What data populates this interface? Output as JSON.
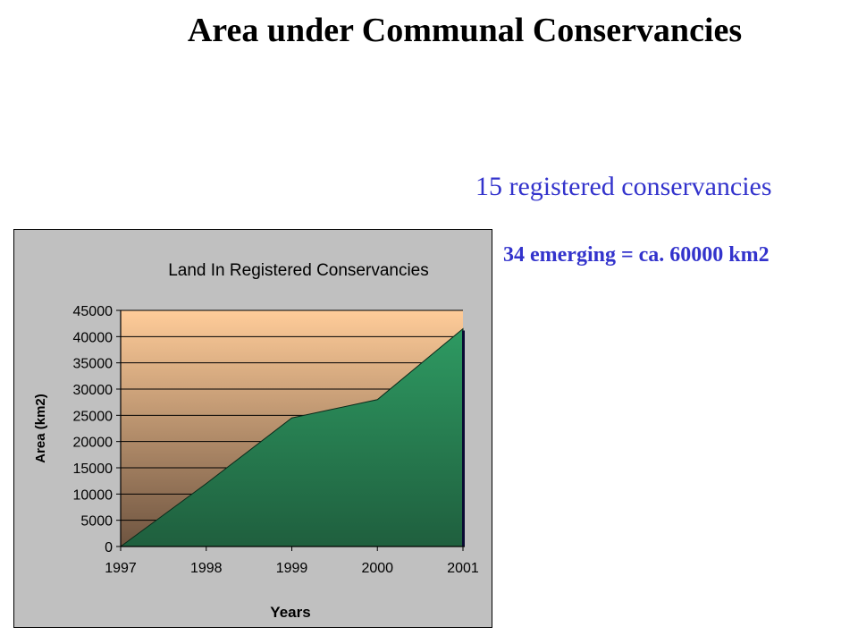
{
  "slide": {
    "title": "Area under Communal Conservancies",
    "note_registered": "15 registered conservancies",
    "note_emerging": "34 emerging = ca. 60000 km2"
  },
  "colors": {
    "area_fill": "#2e8b57",
    "area_dark": "#1f5f3e",
    "plot_top": "#ffcc99",
    "plot_bottom": "#6e5440",
    "frame": "#c0c0c0",
    "note_text": "#3333cc"
  },
  "chart_data": {
    "type": "area",
    "title": "Land In Registered Conservancies",
    "xlabel": "Years",
    "ylabel": "Area (km2)",
    "categories": [
      "1997",
      "1998",
      "1999",
      "2000",
      "2001"
    ],
    "values": [
      0,
      12000,
      24500,
      28000,
      41500
    ],
    "ylim": [
      0,
      45000
    ],
    "yticks": [
      "0",
      "5000",
      "10000",
      "15000",
      "20000",
      "25000",
      "30000",
      "35000",
      "40000",
      "45000"
    ],
    "grid": true,
    "legend": "none"
  }
}
